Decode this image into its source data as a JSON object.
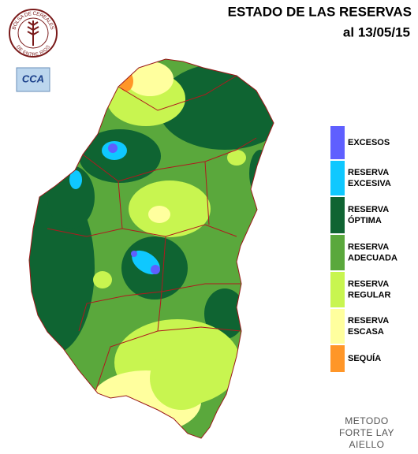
{
  "header": {
    "title": "ESTADO DE LAS RESERVAS",
    "date": "al 13/05/15"
  },
  "logo": {
    "top_text": "BOLSA DE CEREALES",
    "bottom_text": "DE ENTRE RIOS",
    "badge": "CCA"
  },
  "legend": [
    {
      "lines": [
        "EXCESOS"
      ],
      "color": "#5f5fff"
    },
    {
      "lines": [
        "RESERVA",
        "EXCESIVA"
      ],
      "color": "#0fc8ff"
    },
    {
      "lines": [
        "RESERVA",
        "ÓPTIMA"
      ],
      "color": "#0f6432"
    },
    {
      "lines": [
        "RESERVA",
        "ADECUADA"
      ],
      "color": "#5aa83c"
    },
    {
      "lines": [
        "RESERVA",
        "REGULAR"
      ],
      "color": "#c8f550"
    },
    {
      "lines": [
        "RESERVA",
        "ESCASA"
      ],
      "color": "#ffff9e"
    },
    {
      "lines": [
        "SEQUÍA"
      ],
      "color": "#ff9628"
    }
  ],
  "method": [
    "METODO",
    "FORTE LAY",
    "AIELLO"
  ]
}
